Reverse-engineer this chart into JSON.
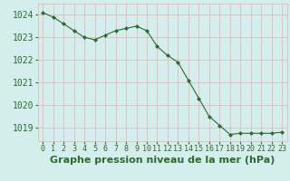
{
  "x": [
    0,
    1,
    2,
    3,
    4,
    5,
    6,
    7,
    8,
    9,
    10,
    11,
    12,
    13,
    14,
    15,
    16,
    17,
    18,
    19,
    20,
    21,
    22,
    23
  ],
  "y": [
    1024.1,
    1023.9,
    1023.6,
    1023.3,
    1023.0,
    1022.9,
    1023.1,
    1023.3,
    1023.4,
    1023.5,
    1023.3,
    1022.6,
    1022.2,
    1021.9,
    1021.1,
    1020.3,
    1019.5,
    1019.1,
    1018.7,
    1018.75,
    1018.75,
    1018.75,
    1018.75,
    1018.8
  ],
  "line_color": "#2d6a2d",
  "marker": "D",
  "marker_size": 2.0,
  "bg_color": "#d4eeee",
  "grid_color": "#e8b8b8",
  "xlabel": "Graphe pression niveau de la mer (hPa)",
  "xlabel_fontsize": 8,
  "tick_fontsize": 7,
  "label_color": "#2d6a2d",
  "ylim": [
    1018.4,
    1024.5
  ],
  "yticks": [
    1019,
    1020,
    1021,
    1022,
    1023,
    1024
  ],
  "xticks": [
    0,
    1,
    2,
    3,
    4,
    5,
    6,
    7,
    8,
    9,
    10,
    11,
    12,
    13,
    14,
    15,
    16,
    17,
    18,
    19,
    20,
    21,
    22,
    23
  ],
  "xtick_labels": [
    "0",
    "1",
    "2",
    "3",
    "4",
    "5",
    "6",
    "7",
    "8",
    "9",
    "10",
    "11",
    "12",
    "13",
    "14",
    "15",
    "16",
    "17",
    "18",
    "19",
    "20",
    "21",
    "22",
    "23"
  ]
}
